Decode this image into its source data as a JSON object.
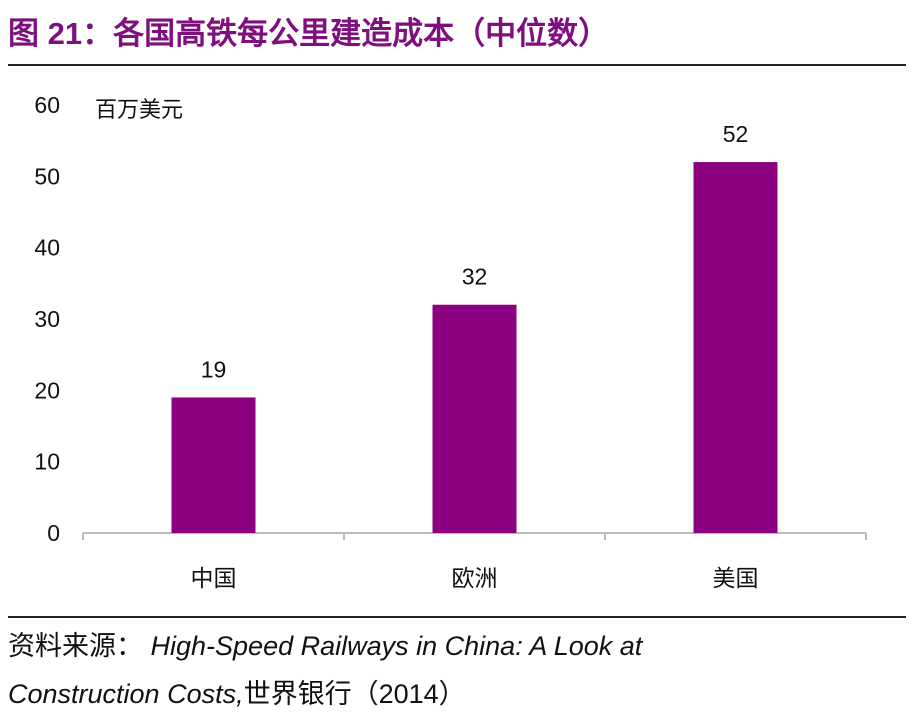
{
  "title": "图 21：各国高铁每公里建造成本（中位数）",
  "source": {
    "prefix": "资料来源：",
    "title_line1": "High-Speed Railways in China: A Look at",
    "title_line2": "Construction Costs,",
    "suffix": "世界银行（2014）"
  },
  "colors": {
    "bar": "#8b0080",
    "title": "#7f0f7e"
  },
  "chart_data": {
    "type": "bar",
    "title": "",
    "ylabel": "百万美元",
    "xlabel": "",
    "categories": [
      "中国",
      "欧洲",
      "美国"
    ],
    "values": [
      19,
      32,
      52
    ],
    "data_labels": [
      "19",
      "32",
      "52"
    ],
    "ylim": [
      0,
      60
    ],
    "yticks": [
      0,
      10,
      20,
      30,
      40,
      50,
      60
    ],
    "grid": false,
    "legend": "none"
  }
}
